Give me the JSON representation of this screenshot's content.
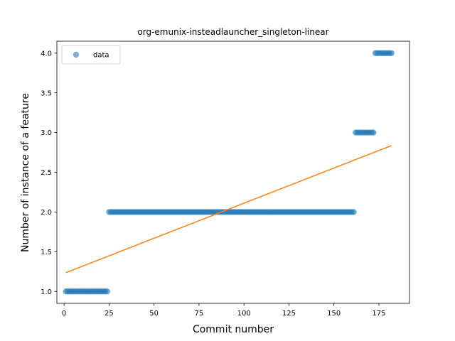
{
  "chart_data": {
    "type": "scatter",
    "title": "org-emunix-insteadlauncher_singleton-linear",
    "xlabel": "Commit number",
    "ylabel": "Number of instance of a feature",
    "xlim": [
      -4,
      192
    ],
    "ylim": [
      0.85,
      4.15
    ],
    "xticks": [
      0,
      25,
      50,
      75,
      100,
      125,
      150,
      175
    ],
    "yticks": [
      1.0,
      1.5,
      2.0,
      2.5,
      3.0,
      3.5,
      4.0
    ],
    "xtick_labels": [
      "0",
      "25",
      "50",
      "75",
      "100",
      "125",
      "150",
      "175"
    ],
    "ytick_labels": [
      "1.0",
      "1.5",
      "2.0",
      "2.5",
      "3.0",
      "3.5",
      "4.0"
    ],
    "legend": {
      "position": "upper-left",
      "entries": [
        "data"
      ]
    },
    "grid": false,
    "series": [
      {
        "name": "data",
        "kind": "scatter",
        "color": "#1f77b4",
        "segments": [
          {
            "x_from": 1,
            "x_to": 24,
            "y": 1.0
          },
          {
            "x_from": 25,
            "x_to": 161,
            "y": 2.0
          },
          {
            "x_from": 162,
            "x_to": 172,
            "y": 3.0
          },
          {
            "x_from": 173,
            "x_to": 182,
            "y": 4.0
          }
        ]
      },
      {
        "name": "",
        "kind": "line",
        "color": "#ff7f0e",
        "x": [
          1,
          182
        ],
        "y": [
          1.236,
          2.836
        ]
      }
    ]
  }
}
